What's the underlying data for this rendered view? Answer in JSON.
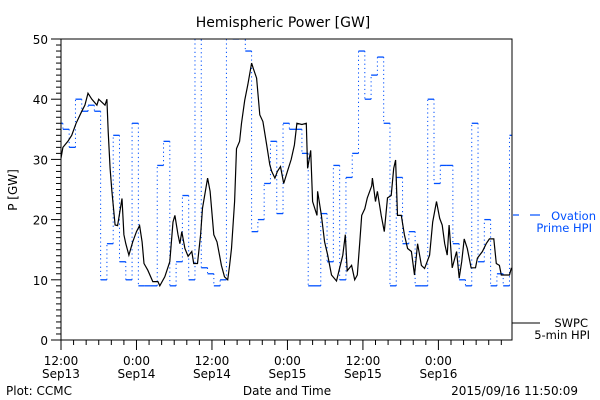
{
  "chart_data": {
    "type": "line",
    "title": "Hemispheric Power [GW]",
    "xlabel": "Date and Time",
    "ylabel": "P [GW]",
    "x_units": "hours since 2015-09-13 12:00",
    "xlim": [
      0,
      71.7
    ],
    "ylim": [
      0,
      50
    ],
    "yticks": [
      0,
      10,
      20,
      30,
      40,
      50
    ],
    "ytick_labels": [
      "0",
      "10",
      "20",
      "30",
      "40",
      "50"
    ],
    "xticks": [
      {
        "hour": 0,
        "time": "12:00",
        "date": "Sep13"
      },
      {
        "hour": 12,
        "time": "0:00",
        "date": "Sep14"
      },
      {
        "hour": 24,
        "time": "12:00",
        "date": "Sep14"
      },
      {
        "hour": 36,
        "time": "0:00",
        "date": "Sep15"
      },
      {
        "hour": 48,
        "time": "12:00",
        "date": "Sep15"
      },
      {
        "hour": 60,
        "time": "0:00",
        "date": "Sep16"
      }
    ],
    "grid": false,
    "series": [
      {
        "name": "Ovation Prime HPI",
        "legend_lines": [
          "Ovation",
          "Prime HPI"
        ],
        "color": "#0050ff",
        "style": "step",
        "step_start_hour": -0.7,
        "step_hours": 1,
        "values": [
          36,
          35,
          32,
          40,
          38,
          39,
          38,
          10,
          16,
          34,
          13,
          10,
          36,
          9,
          9,
          9,
          29,
          33,
          9,
          13,
          24,
          10,
          52,
          12,
          11,
          9,
          10,
          52,
          50,
          52,
          48,
          18,
          20,
          26,
          33,
          21,
          36,
          35,
          35,
          31,
          9,
          9,
          21,
          13,
          29,
          10,
          27,
          31,
          48,
          40,
          44,
          47,
          36,
          9,
          27,
          16,
          18,
          9,
          9,
          40,
          26,
          29,
          29,
          16,
          10,
          9,
          36,
          13,
          20,
          9,
          11,
          9,
          34
        ]
      },
      {
        "name": "SWPC 5-min HPI",
        "legend_lines": [
          "SWPC",
          "5-min HPI"
        ],
        "color": "#000000",
        "style": "line",
        "points": [
          [
            0,
            30.2
          ],
          [
            0.3,
            32
          ],
          [
            1.1,
            33
          ],
          [
            1.7,
            34
          ],
          [
            2.4,
            36
          ],
          [
            3.3,
            38
          ],
          [
            3.8,
            39
          ],
          [
            4.3,
            41
          ],
          [
            4.9,
            40
          ],
          [
            5.7,
            39
          ],
          [
            6.0,
            40
          ],
          [
            7.0,
            39
          ],
          [
            7.3,
            40
          ],
          [
            7.5,
            34.6
          ],
          [
            7.8,
            28.5
          ],
          [
            8.1,
            24.7
          ],
          [
            8.6,
            19.1
          ],
          [
            9.0,
            19
          ],
          [
            9.7,
            23.5
          ],
          [
            10.0,
            17.5
          ],
          [
            10.3,
            16
          ],
          [
            10.8,
            14.1
          ],
          [
            11.4,
            16.3
          ],
          [
            12.0,
            18
          ],
          [
            12.5,
            19
          ],
          [
            12.9,
            16.3
          ],
          [
            13.2,
            12.7
          ],
          [
            13.8,
            11.6
          ],
          [
            14.6,
            9.7
          ],
          [
            15.4,
            9.7
          ],
          [
            15.7,
            9
          ],
          [
            16.5,
            10.5
          ],
          [
            17.3,
            13
          ],
          [
            17.8,
            19.6
          ],
          [
            18.1,
            20.7
          ],
          [
            18.6,
            17.5
          ],
          [
            18.9,
            16
          ],
          [
            19.2,
            18
          ],
          [
            19.7,
            15.2
          ],
          [
            20.2,
            13.9
          ],
          [
            20.8,
            14.7
          ],
          [
            21.1,
            12.7
          ],
          [
            21.7,
            12.7
          ],
          [
            22.2,
            17.5
          ],
          [
            22.5,
            21.9
          ],
          [
            23.3,
            26.9
          ],
          [
            23.7,
            24.7
          ],
          [
            24.3,
            17.5
          ],
          [
            24.8,
            16.3
          ],
          [
            25.2,
            14.1
          ],
          [
            25.5,
            12.4
          ],
          [
            26.0,
            10.5
          ],
          [
            26.5,
            10
          ],
          [
            26.8,
            12.4
          ],
          [
            27.1,
            15.2
          ],
          [
            27.6,
            23
          ],
          [
            27.9,
            31.8
          ],
          [
            28.4,
            33
          ],
          [
            28.7,
            36
          ],
          [
            29.2,
            39.8
          ],
          [
            29.7,
            42.4
          ],
          [
            30.3,
            46
          ],
          [
            30.6,
            45
          ],
          [
            31.1,
            43.5
          ],
          [
            31.6,
            37.4
          ],
          [
            32.1,
            36.3
          ],
          [
            32.7,
            32.4
          ],
          [
            33.2,
            29.1
          ],
          [
            33.5,
            28
          ],
          [
            34.0,
            26.9
          ],
          [
            34.4,
            28
          ],
          [
            34.9,
            28.8
          ],
          [
            35.4,
            26
          ],
          [
            36.0,
            28
          ],
          [
            36.6,
            30
          ],
          [
            37.1,
            32.4
          ],
          [
            37.5,
            36
          ],
          [
            38.3,
            35.8
          ],
          [
            39.0,
            36
          ],
          [
            39.2,
            28.5
          ],
          [
            39.7,
            31.5
          ],
          [
            40.0,
            23
          ],
          [
            40.7,
            20.7
          ],
          [
            40.8,
            24.7
          ],
          [
            41.4,
            20.7
          ],
          [
            41.9,
            16.3
          ],
          [
            42.4,
            14.1
          ],
          [
            43.0,
            10.8
          ],
          [
            43.8,
            9.8
          ],
          [
            44.3,
            12
          ],
          [
            44.8,
            14.1
          ],
          [
            45.2,
            17.5
          ],
          [
            45.5,
            11.5
          ],
          [
            46.2,
            12.4
          ],
          [
            46.7,
            10
          ],
          [
            47.1,
            10.8
          ],
          [
            47.5,
            16.3
          ],
          [
            47.8,
            20.7
          ],
          [
            48.3,
            21.8
          ],
          [
            48.7,
            23.6
          ],
          [
            49.4,
            25.6
          ],
          [
            49.5,
            26.9
          ],
          [
            50.0,
            23
          ],
          [
            50.3,
            24.7
          ],
          [
            50.9,
            20.7
          ],
          [
            51.4,
            18
          ],
          [
            51.9,
            23.6
          ],
          [
            52.5,
            24
          ],
          [
            52.9,
            28.5
          ],
          [
            53.2,
            29.9
          ],
          [
            53.5,
            20.7
          ],
          [
            54.1,
            20.7
          ],
          [
            54.6,
            17.5
          ],
          [
            55.1,
            15.2
          ],
          [
            55.7,
            14.7
          ],
          [
            56.2,
            10.8
          ],
          [
            56.7,
            16
          ],
          [
            57.3,
            12.4
          ],
          [
            57.8,
            11.9
          ],
          [
            58.6,
            14.1
          ],
          [
            59.1,
            19.6
          ],
          [
            59.7,
            23
          ],
          [
            60.2,
            20.2
          ],
          [
            60.6,
            19.1
          ],
          [
            61.0,
            16
          ],
          [
            61.4,
            14.1
          ],
          [
            61.7,
            19.1
          ],
          [
            62.2,
            12
          ],
          [
            62.9,
            14.7
          ],
          [
            63.3,
            10.3
          ],
          [
            63.7,
            13
          ],
          [
            64.1,
            16.8
          ],
          [
            64.6,
            15.2
          ],
          [
            65.2,
            12
          ],
          [
            65.9,
            12
          ],
          [
            66.2,
            13.6
          ],
          [
            67.0,
            14.7
          ],
          [
            67.6,
            16
          ],
          [
            68.1,
            16.8
          ],
          [
            68.8,
            16.8
          ],
          [
            69.2,
            12.7
          ],
          [
            69.7,
            12.4
          ],
          [
            70.0,
            10.8
          ],
          [
            71.3,
            10.8
          ],
          [
            71.6,
            12
          ]
        ]
      }
    ],
    "legend_placement": "right",
    "footer": {
      "left": "Plot: CCMC",
      "right": "2015/09/16 11:50:09"
    }
  }
}
